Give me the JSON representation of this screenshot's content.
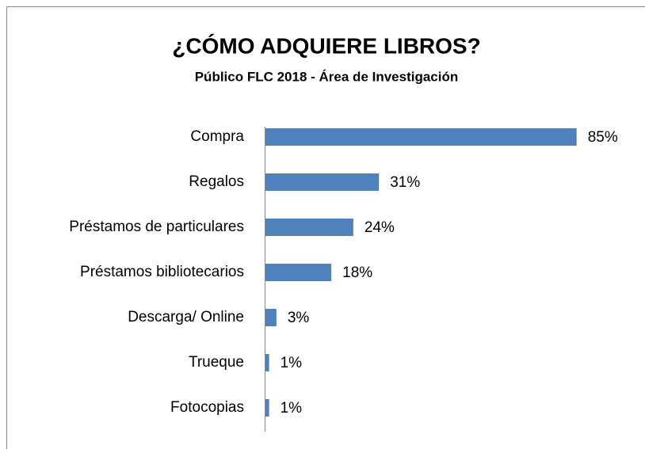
{
  "chart_data": {
    "type": "barh",
    "title": "¿CÓMO ADQUIERE LIBROS?",
    "subtitle": "Público FLC 2018 - Área de Investigación",
    "categories": [
      "Compra",
      "Regalos",
      "Préstamos de particulares",
      "Préstamos bibliotecarios",
      "Descarga/ Online",
      "Trueque",
      "Fotocopias"
    ],
    "values": [
      85,
      31,
      24,
      18,
      3,
      1,
      1
    ],
    "value_labels": [
      "85%",
      "31%",
      "24%",
      "18%",
      "3%",
      "1%",
      "1%"
    ],
    "color": "#4f81bd",
    "xlim": [
      0,
      100
    ]
  }
}
